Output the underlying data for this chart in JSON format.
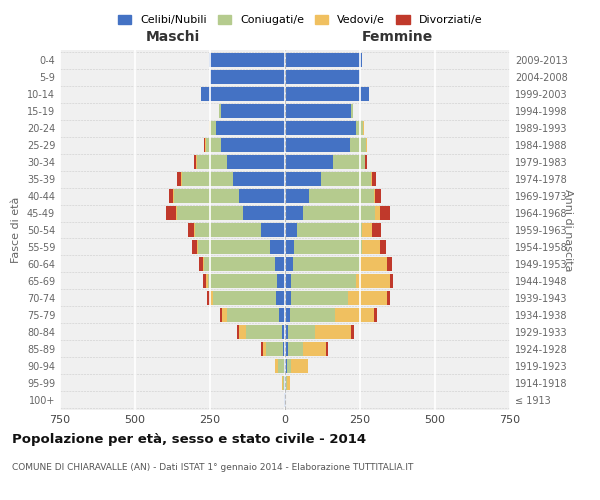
{
  "age_groups": [
    "100+",
    "95-99",
    "90-94",
    "85-89",
    "80-84",
    "75-79",
    "70-74",
    "65-69",
    "60-64",
    "55-59",
    "50-54",
    "45-49",
    "40-44",
    "35-39",
    "30-34",
    "25-29",
    "20-24",
    "15-19",
    "10-14",
    "5-9",
    "0-4"
  ],
  "birth_years": [
    "≤ 1913",
    "1914-1918",
    "1919-1923",
    "1924-1928",
    "1929-1933",
    "1934-1938",
    "1939-1943",
    "1944-1948",
    "1949-1953",
    "1954-1958",
    "1959-1963",
    "1964-1968",
    "1969-1973",
    "1974-1978",
    "1979-1983",
    "1984-1988",
    "1989-1993",
    "1994-1998",
    "1999-2003",
    "2004-2008",
    "2009-2013"
  ],
  "males": {
    "celibi": [
      2,
      2,
      5,
      8,
      10,
      20,
      30,
      28,
      35,
      50,
      80,
      140,
      155,
      175,
      195,
      215,
      230,
      215,
      280,
      250,
      255
    ],
    "coniugati": [
      2,
      5,
      20,
      55,
      120,
      175,
      210,
      230,
      235,
      240,
      220,
      220,
      215,
      170,
      100,
      50,
      20,
      5,
      0,
      0,
      0
    ],
    "vedovi": [
      0,
      2,
      8,
      12,
      25,
      15,
      10,
      5,
      5,
      5,
      3,
      3,
      2,
      2,
      2,
      2,
      2,
      0,
      0,
      0,
      0
    ],
    "divorziati": [
      0,
      0,
      0,
      5,
      5,
      8,
      10,
      10,
      12,
      15,
      20,
      35,
      15,
      12,
      8,
      3,
      2,
      0,
      0,
      0,
      0
    ]
  },
  "females": {
    "nubili": [
      2,
      3,
      5,
      10,
      10,
      15,
      20,
      20,
      25,
      30,
      40,
      60,
      80,
      120,
      160,
      215,
      235,
      220,
      280,
      250,
      255
    ],
    "coniugate": [
      0,
      2,
      15,
      50,
      90,
      150,
      190,
      215,
      225,
      225,
      215,
      240,
      215,
      165,
      105,
      55,
      25,
      5,
      0,
      0,
      0
    ],
    "vedove": [
      2,
      10,
      55,
      75,
      120,
      130,
      130,
      115,
      90,
      60,
      35,
      15,
      5,
      5,
      3,
      2,
      2,
      0,
      0,
      0,
      0
    ],
    "divorziate": [
      0,
      0,
      0,
      8,
      10,
      10,
      10,
      10,
      15,
      20,
      30,
      35,
      20,
      12,
      5,
      2,
      2,
      0,
      0,
      0,
      0
    ]
  },
  "colors": {
    "celibi": "#4472c4",
    "coniugati": "#b5cb8e",
    "vedovi": "#f0c060",
    "divorziati": "#c0392b"
  },
  "xlim": 750,
  "title": "Popolazione per età, sesso e stato civile - 2014",
  "subtitle": "COMUNE DI CHIARAVALLE (AN) - Dati ISTAT 1° gennaio 2014 - Elaborazione TUTTITALIA.IT",
  "ylabel_left": "Fasce di età",
  "ylabel_right": "Anni di nascita",
  "xlabel_left": "Maschi",
  "xlabel_right": "Femmine",
  "legend_labels": [
    "Celibi/Nubili",
    "Coniugati/e",
    "Vedovi/e",
    "Divorziati/e"
  ],
  "bg_color": "#f0f0f0"
}
